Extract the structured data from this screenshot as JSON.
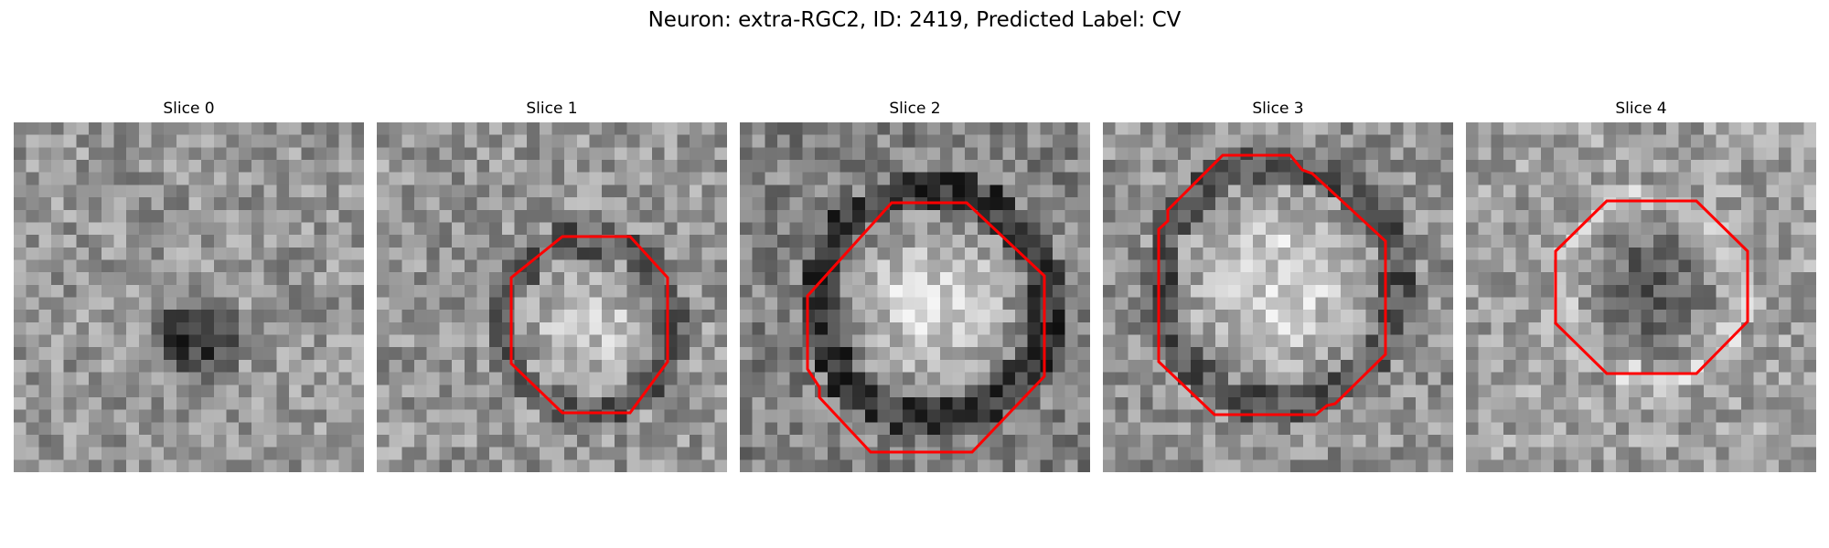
{
  "figure": {
    "title": "Neuron: extra-RGC2, ID: 2419, Predicted Label: CV",
    "contour_color": "#ff0000",
    "slices": [
      {
        "title": "Slice 0",
        "has_contour": false
      },
      {
        "title": "Slice 1",
        "has_contour": true
      },
      {
        "title": "Slice 2",
        "has_contour": true
      },
      {
        "title": "Slice 3",
        "has_contour": true
      },
      {
        "title": "Slice 4",
        "has_contour": true
      }
    ]
  }
}
